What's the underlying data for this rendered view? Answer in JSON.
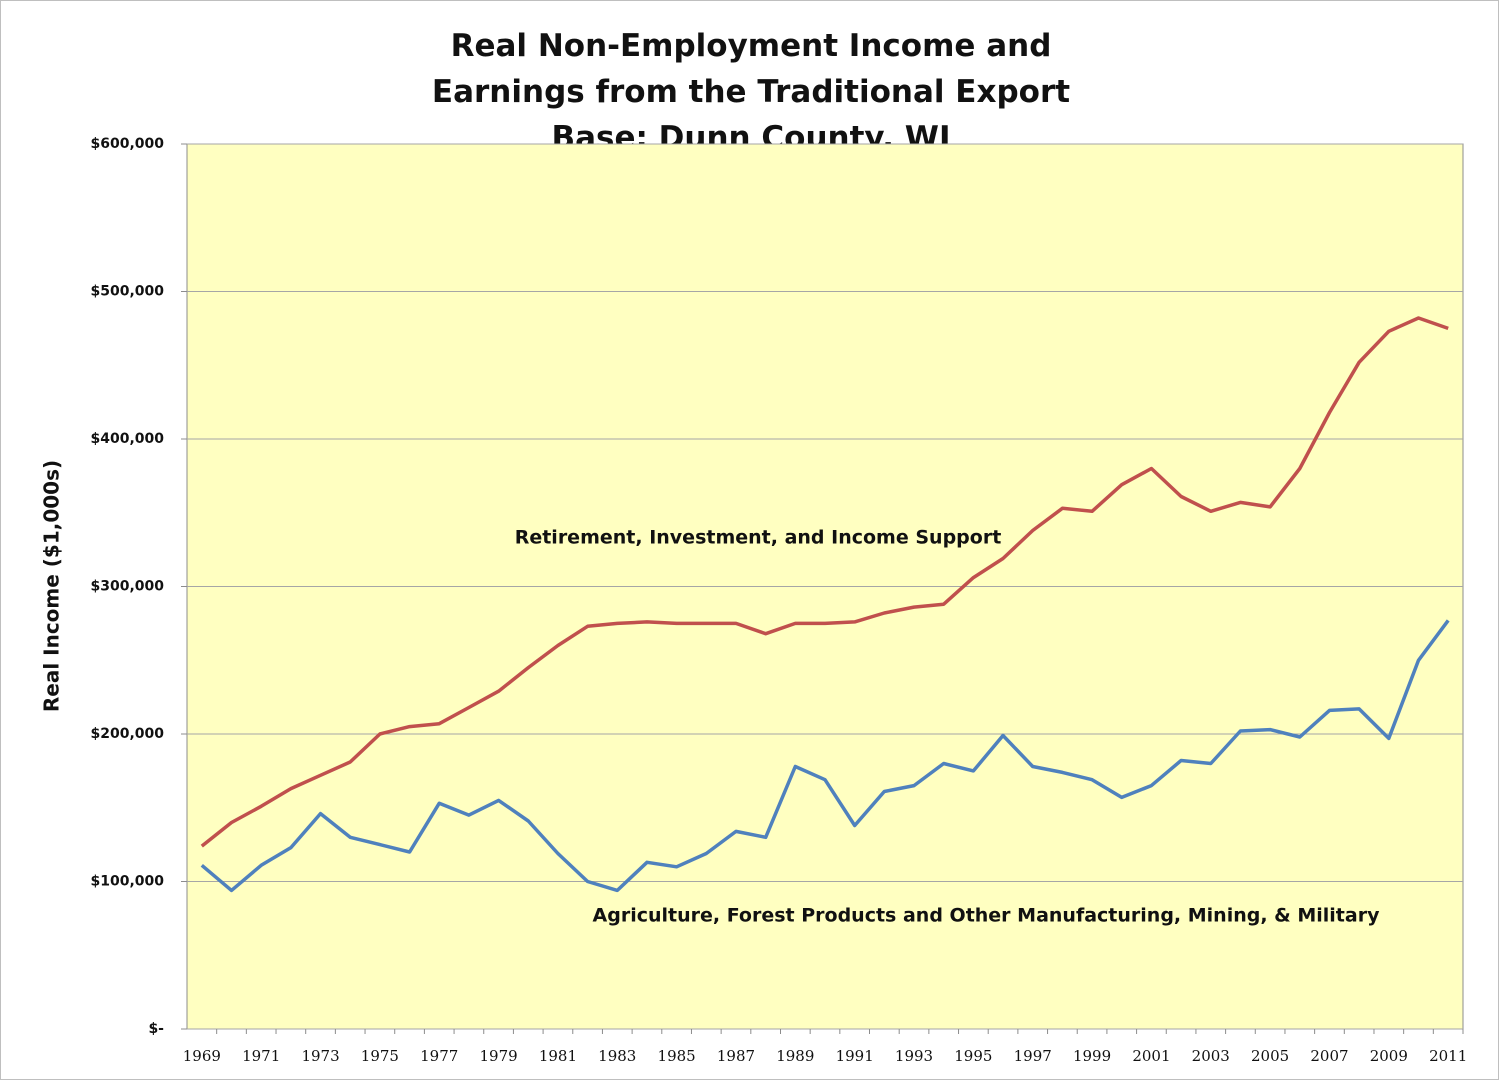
{
  "chart_data": {
    "type": "line",
    "title": "Real Non-Employment Income and Earnings from the Traditional Export Base: Dunn County, WI",
    "y_label": "Real Income ($1,000s)",
    "categories": [
      "1969",
      null,
      "1971",
      null,
      "1973",
      null,
      "1975",
      null,
      "1977",
      null,
      "1979",
      null,
      "1981",
      null,
      "1983",
      null,
      "1985",
      null,
      "1987",
      null,
      "1989",
      null,
      "1991",
      null,
      "1993",
      null,
      "1995",
      null,
      "1997",
      null,
      "1999",
      null,
      "2001",
      null,
      "2003",
      null,
      "2005",
      null,
      "2007",
      null,
      "2009",
      null,
      "2011"
    ],
    "series": [
      {
        "name": "Retirement, Investment, and Income Support",
        "color": "#c0504d",
        "values": [
          124000,
          140000,
          151000,
          163000,
          172000,
          181000,
          200000,
          205000,
          207000,
          218000,
          229000,
          245000,
          260000,
          273000,
          275000,
          276000,
          275000,
          275000,
          275000,
          268000,
          275000,
          275000,
          276000,
          282000,
          286000,
          288000,
          306000,
          319000,
          338000,
          353000,
          351000,
          369000,
          380000,
          361000,
          351000,
          357000,
          354000,
          380000,
          418000,
          452000,
          473000,
          482000,
          475000
        ]
      },
      {
        "name": "Agriculture, Forest Products and Other Manufacturing, Mining, & Military",
        "color": "#4f81bd",
        "values": [
          111000,
          94000,
          111000,
          123000,
          146000,
          130000,
          125000,
          120000,
          153000,
          145000,
          155000,
          141000,
          119000,
          100000,
          94000,
          113000,
          110000,
          119000,
          134000,
          130000,
          178000,
          169000,
          138000,
          161000,
          165000,
          180000,
          175000,
          199000,
          178000,
          174000,
          169000,
          157000,
          165000,
          182000,
          180000,
          202000,
          203000,
          198000,
          216000,
          217000,
          197000,
          250000,
          277000
        ]
      }
    ],
    "ylim": [
      0,
      600000
    ],
    "yticks": [
      {
        "value": 0,
        "label": "$-"
      },
      {
        "value": 100000,
        "label": "$100,000"
      },
      {
        "value": 200000,
        "label": "$200,000"
      },
      {
        "value": 300000,
        "label": "$300,000"
      },
      {
        "value": 400000,
        "label": "$400,000"
      },
      {
        "value": 500000,
        "label": "$500,000"
      },
      {
        "value": 600000,
        "label": "$600,000"
      }
    ],
    "grid": true,
    "background": "#ffffc1"
  }
}
